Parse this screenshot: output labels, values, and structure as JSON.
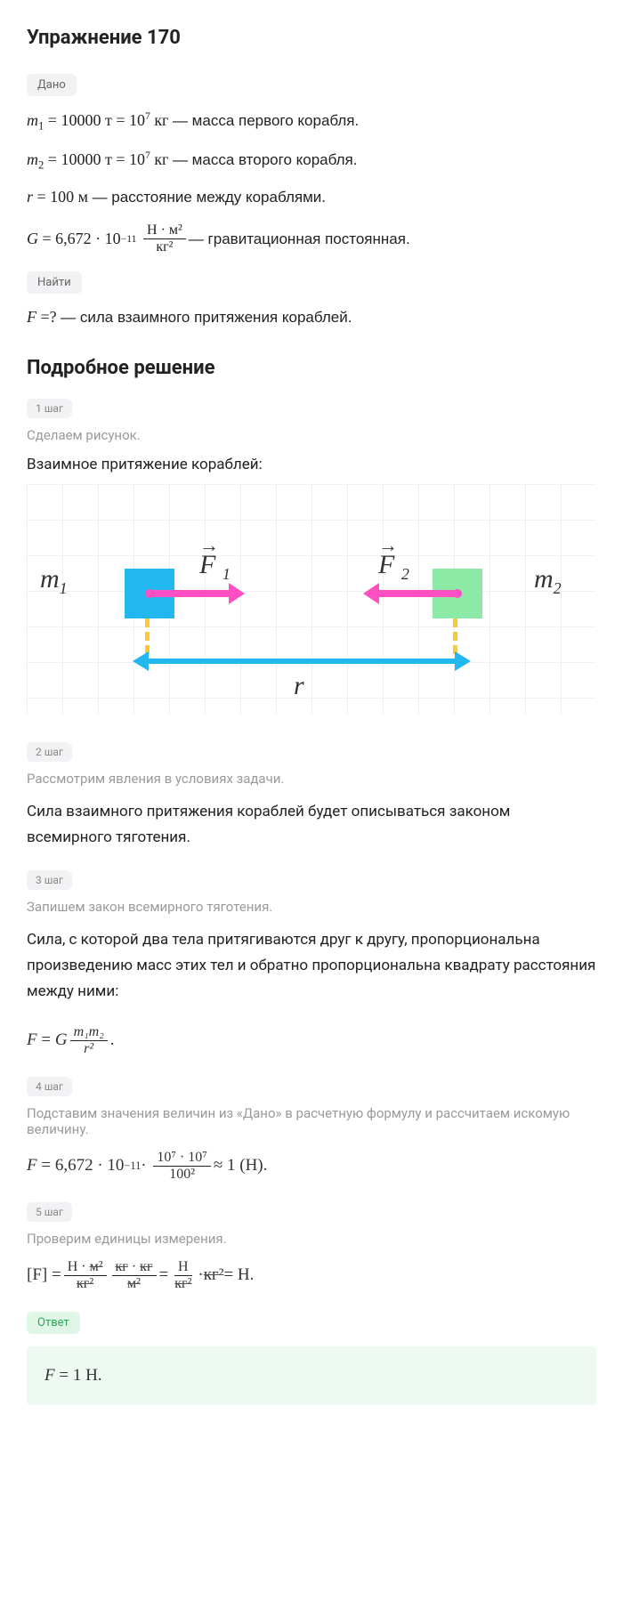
{
  "title": "Упражнение 170",
  "given": {
    "tag": "Дано",
    "m1": "m₁ = 10000 т = 10⁷ кг — масса первого корабля.",
    "m2": "m₂ = 10000 т = 10⁷ кг — масса второго корабля.",
    "r": "r = 100 м — расстояние между кораблями.",
    "G_prefix": "G = 6,672 · 10⁻¹¹ ",
    "G_num": "Н · м²",
    "G_den": "кг²",
    "G_suffix": " — гравитационная постоянная."
  },
  "find": {
    "tag": "Найти",
    "F": "F =? — сила взаимного притяжения кораблей."
  },
  "solution_title": "Подробное решение",
  "steps": [
    {
      "tag": "1 шаг",
      "desc": "Сделаем рисунок.",
      "title": "Взаимное притяжение кораблей:"
    },
    {
      "tag": "2 шаг",
      "desc": "Рассмотрим явления в условиях задачи.",
      "text": "Сила взаимного притяжения кораблей будет описываться законом всемирного тяготения."
    },
    {
      "tag": "3 шаг",
      "desc": "Запишем закон всемирного тяготения.",
      "text": "Сила, с которой два тела притягиваются друг к другу, пропорциональна произведению масс этих тел и обратно пропорциональна квадрату расстояния между ними:",
      "formula_prefix": "F = G",
      "formula_num": "m₁m₂",
      "formula_den": "r²",
      "formula_suffix": "."
    },
    {
      "tag": "4 шаг",
      "desc": "Подставим значения величин из «Дано» в расчетную формулу и рассчитаем искомую величину.",
      "formula_prefix": "F = 6,672 · 10⁻¹¹ · ",
      "formula_num": "10⁷ · 10⁷",
      "formula_den": "100²",
      "formula_suffix": " ≈ 1 (Н)."
    },
    {
      "tag": "5 шаг",
      "desc": "Проверим единицы измерения.",
      "dim_lhs": "[F] = ",
      "dim_f1_num": "Н · м²",
      "dim_f1_den": "кг²",
      "dim_f2_num": "кг · кг",
      "dim_f2_den": "м²",
      "dim_eq": " = ",
      "dim_f3_num": "Н",
      "dim_f3_den": "кг²",
      "dim_dot": " · ",
      "dim_f4": "кг²",
      "dim_rhs": " = Н."
    }
  ],
  "diagram": {
    "m1": "m₁",
    "m2": "m₂",
    "F1": "F ₁",
    "F2": "F ₂",
    "r": "r",
    "colors": {
      "box1": "#22b7ef",
      "box2": "#8ce9a6",
      "arrow_force": "#ff4fc3",
      "dash": "#ffc832",
      "arrow_r": "#22b7ef",
      "grid": "#eef0f4"
    }
  },
  "answer": {
    "tag": "Ответ",
    "text": "F = 1 Н."
  }
}
